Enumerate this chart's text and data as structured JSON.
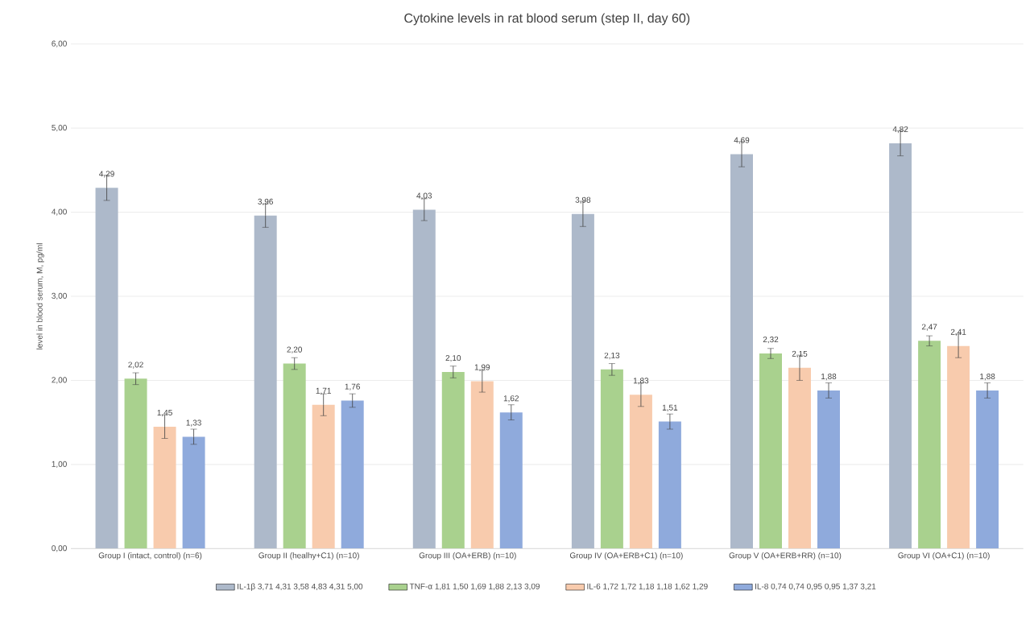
{
  "chart_data": {
    "type": "bar",
    "title": "Cytokine levels in rat blood serum (step II, day 60)",
    "ylabel": "level in blood serum, M, pg/ml",
    "categories": [
      "Group I (intact, control) (n=6)",
      "Group II (healhy+C1) (n=10)",
      "Group III (OA+ERB) (n=10)",
      "Group IV (OA+ERB+C1) (n=10)",
      "Group V (OA+ERB+RR) (n=10)",
      "Group VI (OA+C1) (n=10)"
    ],
    "series": [
      {
        "name": "IL-1β 3,71 4,31 3,58 4,83 4,31 5,00",
        "color": "#adb9ca",
        "values": [
          4.29,
          3.96,
          4.03,
          3.98,
          4.69,
          4.82
        ],
        "errors": [
          0.15,
          0.14,
          0.13,
          0.15,
          0.15,
          0.15
        ],
        "value_labels": [
          "4,29",
          "3,96",
          "4,03",
          "3,98",
          "4,69",
          "4,82"
        ]
      },
      {
        "name": "TNF-α 1,81 1,50 1,69 1,88 2,13 3,09",
        "color": "#a9d18e",
        "values": [
          2.02,
          2.2,
          2.1,
          2.13,
          2.32,
          2.47
        ],
        "errors": [
          0.07,
          0.07,
          0.07,
          0.07,
          0.06,
          0.06
        ],
        "value_labels": [
          "2,02",
          "2,20",
          "2,10",
          "2,13",
          "2,32",
          "2,47"
        ]
      },
      {
        "name": "IL-6 1,72 1,72 1,18 1,18 1,62 1,29",
        "color": "#f8cbad",
        "values": [
          1.45,
          1.71,
          1.99,
          1.83,
          2.15,
          2.41
        ],
        "errors": [
          0.14,
          0.13,
          0.13,
          0.14,
          0.15,
          0.14
        ],
        "value_labels": [
          "1,45",
          "1,71",
          "1,99",
          "1,83",
          "2,15",
          "2,41"
        ]
      },
      {
        "name": "IL-8 0,74 0,74 0,95 0,95 1,37 3,21",
        "color": "#8faadc",
        "values": [
          1.33,
          1.76,
          1.62,
          1.51,
          1.88,
          1.88
        ],
        "errors": [
          0.09,
          0.08,
          0.09,
          0.09,
          0.09,
          0.09
        ],
        "value_labels": [
          "1,33",
          "1,76",
          "1,62",
          "1,51",
          "1,88",
          "1,88"
        ]
      }
    ],
    "ylim": [
      0,
      6
    ],
    "yticks": [
      {
        "value": 0,
        "label": "0,00"
      },
      {
        "value": 1,
        "label": "1,00"
      },
      {
        "value": 2,
        "label": "2,00"
      },
      {
        "value": 3,
        "label": "3,00"
      },
      {
        "value": 4,
        "label": "4,00"
      },
      {
        "value": 5,
        "label": "5,00"
      },
      {
        "value": 6,
        "label": "6,00"
      }
    ],
    "grid": "y",
    "legend": "bottom"
  }
}
